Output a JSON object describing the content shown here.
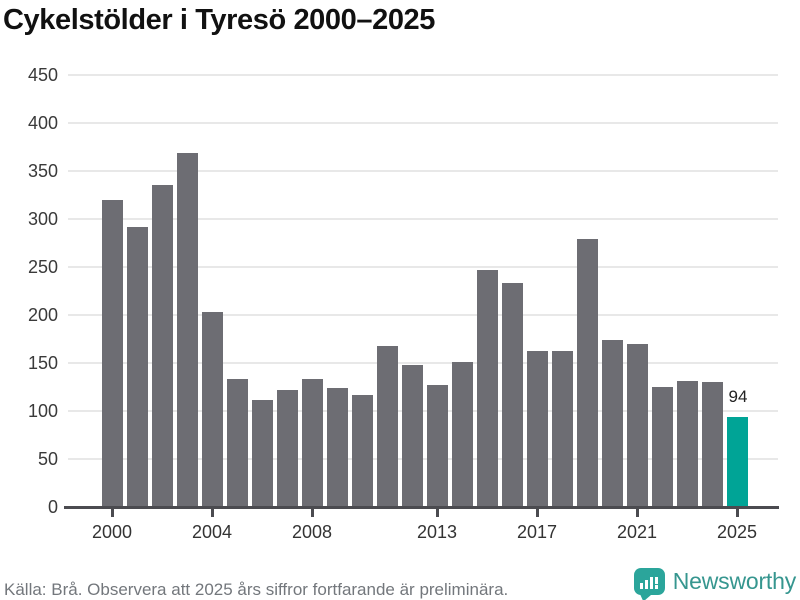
{
  "title": "Cykelstölder i Tyresö 2000–2025",
  "footer": {
    "source_text": "Källa: Brå. Observera att 2025 års siffror fortfarande är preliminära."
  },
  "logo": {
    "brand": "Newsworthy",
    "icon": "newsworthy-speech-bubble-bar-chart-icon"
  },
  "colors": {
    "bar": "#6d6d73",
    "highlight": "#00a496",
    "grid": "#e8e8e8",
    "axis": "#4b4b50",
    "annotation": "#222222",
    "logo_teal": "#2ba59b",
    "logo_word": "#36968f"
  },
  "chart_data": {
    "type": "bar",
    "title": "Cykelstölder i Tyresö 2000–2025",
    "xlabel": "",
    "ylabel": "",
    "x": [
      2000,
      2001,
      2002,
      2003,
      2004,
      2005,
      2006,
      2007,
      2008,
      2009,
      2010,
      2011,
      2012,
      2013,
      2014,
      2015,
      2016,
      2017,
      2018,
      2019,
      2020,
      2021,
      2022,
      2023,
      2024,
      2025
    ],
    "values": [
      320,
      292,
      335,
      369,
      203,
      133,
      111,
      122,
      133,
      124,
      117,
      168,
      148,
      127,
      151,
      247,
      233,
      162,
      162,
      279,
      174,
      170,
      125,
      131,
      130,
      94
    ],
    "ylim": [
      0,
      450
    ],
    "yticks": [
      0,
      50,
      100,
      150,
      200,
      250,
      300,
      350,
      400,
      450
    ],
    "xticks": [
      2000,
      2004,
      2008,
      2013,
      2017,
      2021,
      2025
    ],
    "grid": "horizontal",
    "legend": "none",
    "highlight_index": 25,
    "annotation": {
      "text": "94",
      "x": 2025
    }
  }
}
